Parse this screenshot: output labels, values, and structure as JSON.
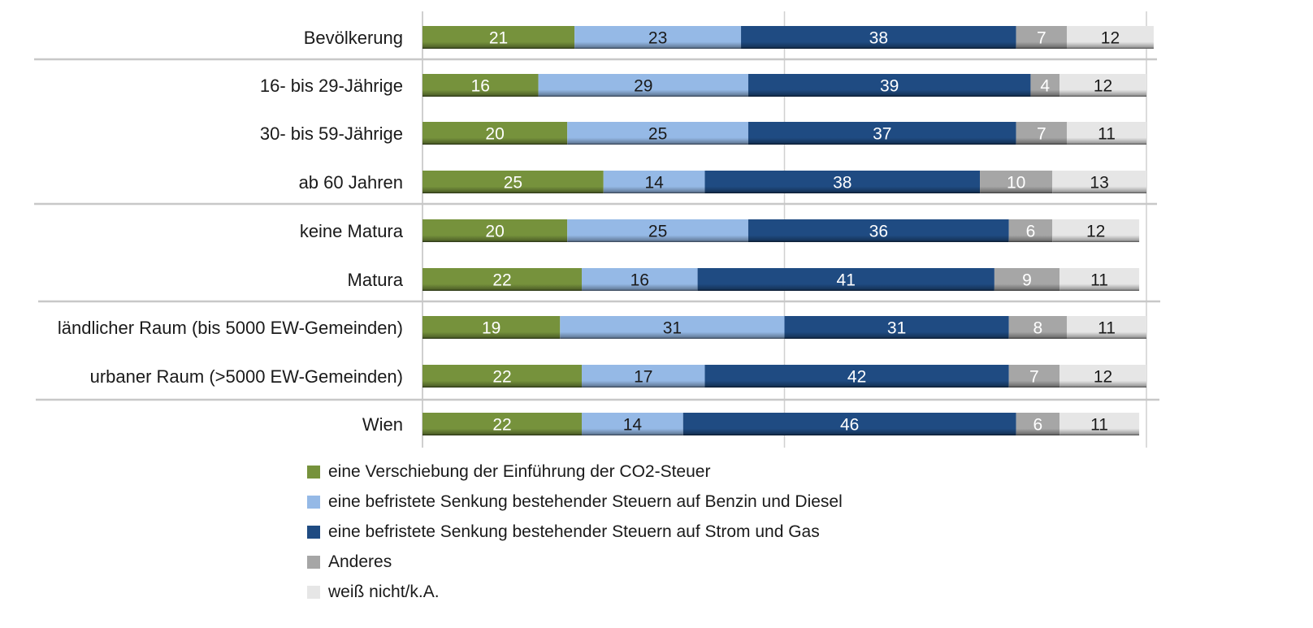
{
  "chart_data": {
    "type": "bar",
    "orientation": "horizontal",
    "stacked": "percent",
    "title": "",
    "xlabel": "",
    "ylabel": "",
    "xlim": [
      0,
      100
    ],
    "grid": true,
    "legend_position": "bottom",
    "categories": [
      "Bevölkerung",
      "16- bis 29-Jährige",
      "30- bis 59-Jährige",
      "ab 60 Jahren",
      "keine Matura",
      "Matura",
      "ländlicher Raum (bis 5000 EW-Gemeinden)",
      "urbaner Raum (>5000 EW-Gemeinden)",
      "Wien"
    ],
    "group_separators_after": [
      0,
      3,
      5,
      7
    ],
    "series": [
      {
        "name": "eine Verschiebung der Einführung der CO2-Steuer",
        "color": "#76923C",
        "label_color": "#ffffff",
        "values": [
          21,
          16,
          20,
          25,
          20,
          22,
          19,
          22,
          22
        ]
      },
      {
        "name": "eine befristete Senkung bestehender Steuern auf Benzin und Diesel",
        "color": "#95B9E6",
        "label_color": "#1a1a1a",
        "values": [
          23,
          29,
          25,
          14,
          25,
          16,
          31,
          17,
          14
        ]
      },
      {
        "name": "eine befristete Senkung bestehender Steuern auf Strom und Gas",
        "color": "#1F4B82",
        "label_color": "#ffffff",
        "values": [
          38,
          39,
          37,
          38,
          36,
          41,
          31,
          42,
          46
        ]
      },
      {
        "name": "Anderes",
        "color": "#A6A6A6",
        "label_color": "#ffffff",
        "values": [
          7,
          4,
          7,
          10,
          6,
          9,
          8,
          7,
          6
        ]
      },
      {
        "name": "weiß nicht/k.A.",
        "color": "#E6E6E6",
        "label_color": "#1a1a1a",
        "values": [
          12,
          12,
          11,
          13,
          12,
          11,
          11,
          12,
          11
        ]
      }
    ]
  }
}
